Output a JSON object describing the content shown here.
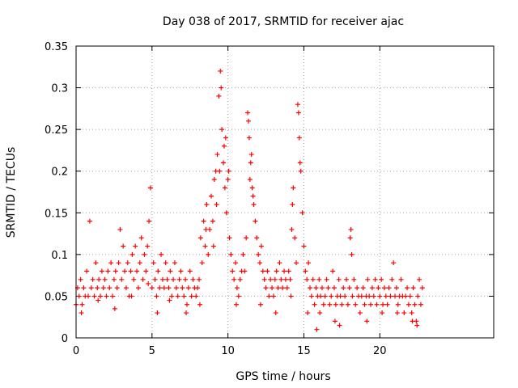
{
  "chart_data": {
    "type": "scatter",
    "title": "Day 038 of 2017, SRMTID for receiver ajac",
    "xlabel": "GPS time / hours",
    "ylabel": "SRMTID / TECUs",
    "xlim": [
      0,
      27.5
    ],
    "ylim": [
      0,
      0.35
    ],
    "xticks": [
      0,
      5,
      10,
      15,
      20
    ],
    "yticks": [
      0,
      0.05,
      0.1,
      0.15,
      0.2,
      0.25,
      0.3,
      0.35
    ],
    "xtick_labels": [
      "0",
      "5",
      "10",
      "15",
      "20"
    ],
    "ytick_labels": [
      "0",
      "0.05",
      "0.1",
      "0.15",
      "0.2",
      "0.25",
      "0.3",
      "0.35"
    ],
    "grid": true,
    "marker": "+",
    "colors": {
      "points": "#ff0000",
      "grid": "#a0a0a0",
      "axes": "#000000"
    },
    "series": [
      {
        "name": "SRMTID",
        "points": [
          [
            0.0,
            0.04
          ],
          [
            0.1,
            0.06
          ],
          [
            0.2,
            0.05
          ],
          [
            0.3,
            0.07
          ],
          [
            0.4,
            0.04
          ],
          [
            0.5,
            0.06
          ],
          [
            0.6,
            0.05
          ],
          [
            0.7,
            0.08
          ],
          [
            0.8,
            0.05
          ],
          [
            0.9,
            0.14
          ],
          [
            1.0,
            0.06
          ],
          [
            1.1,
            0.07
          ],
          [
            1.2,
            0.05
          ],
          [
            1.3,
            0.09
          ],
          [
            1.4,
            0.06
          ],
          [
            1.5,
            0.07
          ],
          [
            1.6,
            0.05
          ],
          [
            1.7,
            0.08
          ],
          [
            1.8,
            0.06
          ],
          [
            1.9,
            0.07
          ],
          [
            2.0,
            0.05
          ],
          [
            2.1,
            0.08
          ],
          [
            2.2,
            0.06
          ],
          [
            2.3,
            0.09
          ],
          [
            2.4,
            0.05
          ],
          [
            2.5,
            0.07
          ],
          [
            2.6,
            0.08
          ],
          [
            2.7,
            0.06
          ],
          [
            2.8,
            0.09
          ],
          [
            2.9,
            0.13
          ],
          [
            3.0,
            0.07
          ],
          [
            3.1,
            0.11
          ],
          [
            3.2,
            0.08
          ],
          [
            3.3,
            0.06
          ],
          [
            3.4,
            0.09
          ],
          [
            3.5,
            0.05
          ],
          [
            3.6,
            0.08
          ],
          [
            3.7,
            0.1
          ],
          [
            3.8,
            0.07
          ],
          [
            3.9,
            0.11
          ],
          [
            4.0,
            0.08
          ],
          [
            4.1,
            0.06
          ],
          [
            4.2,
            0.09
          ],
          [
            4.3,
            0.12
          ],
          [
            4.4,
            0.07
          ],
          [
            4.5,
            0.1
          ],
          [
            4.6,
            0.08
          ],
          [
            4.7,
            0.11
          ],
          [
            4.8,
            0.14
          ],
          [
            4.9,
            0.18
          ],
          [
            5.0,
            0.06
          ],
          [
            5.1,
            0.09
          ],
          [
            5.2,
            0.07
          ],
          [
            5.3,
            0.05
          ],
          [
            5.4,
            0.08
          ],
          [
            5.5,
            0.06
          ],
          [
            5.6,
            0.1
          ],
          [
            5.7,
            0.07
          ],
          [
            5.8,
            0.06
          ],
          [
            5.9,
            0.09
          ],
          [
            6.0,
            0.07
          ],
          [
            6.1,
            0.06
          ],
          [
            6.2,
            0.08
          ],
          [
            6.3,
            0.05
          ],
          [
            6.4,
            0.07
          ],
          [
            6.5,
            0.09
          ],
          [
            6.6,
            0.06
          ],
          [
            6.7,
            0.05
          ],
          [
            6.8,
            0.07
          ],
          [
            6.9,
            0.08
          ],
          [
            7.0,
            0.06
          ],
          [
            7.1,
            0.05
          ],
          [
            7.2,
            0.07
          ],
          [
            7.3,
            0.04
          ],
          [
            7.4,
            0.06
          ],
          [
            7.5,
            0.08
          ],
          [
            7.6,
            0.05
          ],
          [
            7.7,
            0.07
          ],
          [
            7.8,
            0.06
          ],
          [
            7.9,
            0.05
          ],
          [
            8.0,
            0.06
          ],
          [
            8.1,
            0.07
          ],
          [
            8.2,
            0.12
          ],
          [
            8.3,
            0.09
          ],
          [
            8.4,
            0.14
          ],
          [
            8.5,
            0.11
          ],
          [
            8.6,
            0.16
          ],
          [
            8.7,
            0.1
          ],
          [
            8.8,
            0.13
          ],
          [
            8.9,
            0.17
          ],
          [
            9.0,
            0.14
          ],
          [
            9.1,
            0.19
          ],
          [
            9.2,
            0.2
          ],
          [
            9.3,
            0.22
          ],
          [
            9.4,
            0.29
          ],
          [
            9.5,
            0.32
          ],
          [
            9.6,
            0.25
          ],
          [
            9.7,
            0.21
          ],
          [
            9.8,
            0.18
          ],
          [
            9.9,
            0.15
          ],
          [
            10.0,
            0.19
          ],
          [
            10.1,
            0.12
          ],
          [
            10.2,
            0.1
          ],
          [
            10.3,
            0.08
          ],
          [
            10.4,
            0.07
          ],
          [
            10.5,
            0.09
          ],
          [
            10.6,
            0.06
          ],
          [
            10.7,
            0.05
          ],
          [
            10.8,
            0.07
          ],
          [
            10.9,
            0.08
          ],
          [
            11.0,
            0.1
          ],
          [
            11.1,
            0.08
          ],
          [
            11.2,
            0.12
          ],
          [
            11.3,
            0.27
          ],
          [
            11.4,
            0.24
          ],
          [
            11.5,
            0.21
          ],
          [
            11.6,
            0.18
          ],
          [
            11.7,
            0.16
          ],
          [
            11.8,
            0.14
          ],
          [
            11.9,
            0.12
          ],
          [
            12.0,
            0.1
          ],
          [
            12.1,
            0.09
          ],
          [
            12.2,
            0.11
          ],
          [
            12.3,
            0.08
          ],
          [
            12.4,
            0.07
          ],
          [
            12.5,
            0.06
          ],
          [
            12.6,
            0.08
          ],
          [
            12.7,
            0.05
          ],
          [
            12.8,
            0.07
          ],
          [
            12.9,
            0.06
          ],
          [
            13.0,
            0.05
          ],
          [
            13.1,
            0.07
          ],
          [
            13.2,
            0.08
          ],
          [
            13.3,
            0.06
          ],
          [
            13.4,
            0.09
          ],
          [
            13.5,
            0.07
          ],
          [
            13.6,
            0.06
          ],
          [
            13.7,
            0.08
          ],
          [
            13.8,
            0.07
          ],
          [
            13.9,
            0.06
          ],
          [
            14.0,
            0.08
          ],
          [
            14.1,
            0.07
          ],
          [
            14.2,
            0.13
          ],
          [
            14.3,
            0.18
          ],
          [
            14.4,
            0.12
          ],
          [
            14.5,
            0.09
          ],
          [
            14.6,
            0.28
          ],
          [
            14.7,
            0.24
          ],
          [
            14.8,
            0.2
          ],
          [
            14.9,
            0.15
          ],
          [
            15.0,
            0.11
          ],
          [
            15.1,
            0.08
          ],
          [
            15.2,
            0.07
          ],
          [
            15.3,
            0.09
          ],
          [
            15.4,
            0.06
          ],
          [
            15.5,
            0.05
          ],
          [
            15.6,
            0.07
          ],
          [
            15.7,
            0.04
          ],
          [
            15.8,
            0.06
          ],
          [
            15.9,
            0.05
          ],
          [
            16.0,
            0.07
          ],
          [
            16.1,
            0.05
          ],
          [
            16.2,
            0.06
          ],
          [
            16.3,
            0.04
          ],
          [
            16.4,
            0.05
          ],
          [
            16.5,
            0.07
          ],
          [
            16.6,
            0.06
          ],
          [
            16.7,
            0.04
          ],
          [
            16.8,
            0.05
          ],
          [
            16.9,
            0.08
          ],
          [
            17.0,
            0.06
          ],
          [
            17.1,
            0.04
          ],
          [
            17.2,
            0.05
          ],
          [
            17.3,
            0.07
          ],
          [
            17.4,
            0.05
          ],
          [
            17.5,
            0.04
          ],
          [
            17.6,
            0.06
          ],
          [
            17.7,
            0.05
          ],
          [
            17.8,
            0.07
          ],
          [
            17.9,
            0.04
          ],
          [
            18.0,
            0.06
          ],
          [
            18.1,
            0.13
          ],
          [
            18.2,
            0.05
          ],
          [
            18.3,
            0.07
          ],
          [
            18.4,
            0.04
          ],
          [
            18.5,
            0.06
          ],
          [
            18.6,
            0.05
          ],
          [
            18.7,
            0.03
          ],
          [
            18.8,
            0.05
          ],
          [
            18.9,
            0.06
          ],
          [
            19.0,
            0.04
          ],
          [
            19.1,
            0.05
          ],
          [
            19.2,
            0.07
          ],
          [
            19.3,
            0.05
          ],
          [
            19.4,
            0.04
          ],
          [
            19.5,
            0.06
          ],
          [
            19.6,
            0.05
          ],
          [
            19.7,
            0.07
          ],
          [
            19.8,
            0.04
          ],
          [
            19.9,
            0.06
          ],
          [
            20.0,
            0.05
          ],
          [
            20.1,
            0.07
          ],
          [
            20.2,
            0.04
          ],
          [
            20.3,
            0.06
          ],
          [
            20.4,
            0.05
          ],
          [
            20.5,
            0.04
          ],
          [
            20.6,
            0.06
          ],
          [
            20.7,
            0.05
          ],
          [
            20.8,
            0.07
          ],
          [
            20.9,
            0.09
          ],
          [
            21.0,
            0.05
          ],
          [
            21.1,
            0.06
          ],
          [
            21.2,
            0.04
          ],
          [
            21.3,
            0.05
          ],
          [
            21.4,
            0.07
          ],
          [
            21.5,
            0.05
          ],
          [
            21.6,
            0.03
          ],
          [
            21.7,
            0.05
          ],
          [
            21.8,
            0.06
          ],
          [
            21.9,
            0.04
          ],
          [
            22.0,
            0.05
          ],
          [
            22.1,
            0.03
          ],
          [
            22.2,
            0.06
          ],
          [
            22.3,
            0.04
          ],
          [
            22.4,
            0.02
          ],
          [
            22.5,
            0.05
          ],
          [
            22.6,
            0.07
          ],
          [
            22.7,
            0.04
          ],
          [
            22.8,
            0.06
          ],
          [
            0.35,
            0.03
          ],
          [
            1.45,
            0.045
          ],
          [
            2.55,
            0.035
          ],
          [
            3.65,
            0.05
          ],
          [
            4.75,
            0.065
          ],
          [
            5.35,
            0.03
          ],
          [
            6.15,
            0.045
          ],
          [
            7.25,
            0.03
          ],
          [
            8.15,
            0.04
          ],
          [
            9.05,
            0.11
          ],
          [
            9.45,
            0.2
          ],
          [
            9.55,
            0.3
          ],
          [
            9.75,
            0.23
          ],
          [
            9.85,
            0.24
          ],
          [
            10.05,
            0.2
          ],
          [
            10.55,
            0.04
          ],
          [
            11.35,
            0.26
          ],
          [
            11.45,
            0.19
          ],
          [
            11.65,
            0.17
          ],
          [
            12.15,
            0.04
          ],
          [
            13.15,
            0.03
          ],
          [
            14.15,
            0.05
          ],
          [
            14.25,
            0.16
          ],
          [
            14.65,
            0.27
          ],
          [
            14.75,
            0.21
          ],
          [
            15.25,
            0.03
          ],
          [
            16.05,
            0.03
          ],
          [
            17.05,
            0.02
          ],
          [
            18.05,
            0.12
          ],
          [
            18.15,
            0.1
          ],
          [
            19.15,
            0.02
          ],
          [
            20.15,
            0.03
          ],
          [
            21.15,
            0.03
          ],
          [
            22.15,
            0.02
          ],
          [
            22.45,
            0.015
          ],
          [
            15.85,
            0.01
          ],
          [
            17.35,
            0.015
          ],
          [
            8.55,
            0.13
          ],
          [
            9.25,
            0.16
          ],
          [
            11.55,
            0.22
          ]
        ]
      }
    ]
  }
}
